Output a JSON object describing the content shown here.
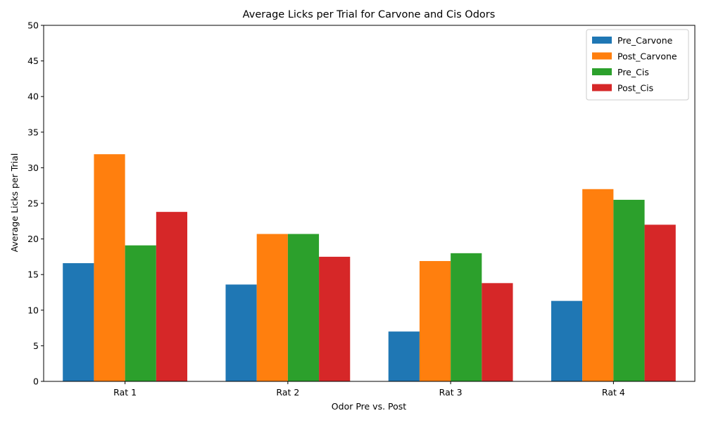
{
  "chart_data": {
    "type": "bar",
    "title": "Average Licks per Trial for Carvone and Cis Odors",
    "xlabel": "Odor Pre vs. Post",
    "ylabel": "Average Licks per Trial",
    "categories": [
      "Rat 1",
      "Rat 2",
      "Rat 3",
      "Rat 4"
    ],
    "ylim": [
      0,
      50
    ],
    "yticks": [
      0,
      5,
      10,
      15,
      20,
      25,
      30,
      35,
      40,
      45,
      50
    ],
    "grid": false,
    "legend_position": "top-right",
    "series": [
      {
        "name": "Pre_Carvone",
        "color": "#1f77b4",
        "values": [
          16.6,
          13.6,
          7.0,
          11.3
        ]
      },
      {
        "name": "Post_Carvone",
        "color": "#ff7f0e",
        "values": [
          31.9,
          20.7,
          16.9,
          27.0
        ]
      },
      {
        "name": "Pre_Cis",
        "color": "#2ca02c",
        "values": [
          19.1,
          20.7,
          18.0,
          25.5
        ]
      },
      {
        "name": "Post_Cis",
        "color": "#d62728",
        "values": [
          23.8,
          17.5,
          13.8,
          22.0
        ]
      }
    ]
  }
}
